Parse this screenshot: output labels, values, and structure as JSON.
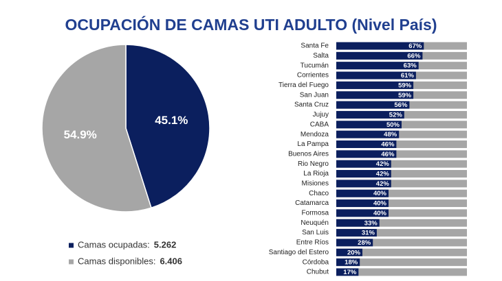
{
  "title": "OCUPACIÓN DE CAMAS UTI ADULTO (Nivel País)",
  "chart_data": [
    {
      "type": "pie",
      "categories": [
        "Camas ocupadas:",
        "Camas disponibles:"
      ],
      "values": [
        45.1,
        54.9
      ],
      "value_labels": [
        "45.1%",
        "54.9%"
      ],
      "colors": [
        "#0b1f5e",
        "#a6a6a6"
      ],
      "counts": [
        {
          "value": 5262,
          "label": "5.262"
        },
        {
          "value": 6406,
          "label": "6.406"
        }
      ]
    },
    {
      "type": "hbar",
      "categories": [
        "Santa Fe",
        "Salta",
        "Tucumán",
        "Corrientes",
        "Tierra del Fuego",
        "San Juan",
        "Santa Cruz",
        "Jujuy",
        "CABA",
        "Mendoza",
        "La Pampa",
        "Buenos Aires",
        "Rio Negro",
        "La Rioja",
        "Misiones",
        "Chaco",
        "Catamarca",
        "Formosa",
        "Neuquén",
        "San Luis",
        "Entre Ríos",
        "Santiago del Estero",
        "Córdoba",
        "Chubut"
      ],
      "values": [
        67,
        66,
        63,
        61,
        59,
        59,
        56,
        52,
        50,
        48,
        46,
        46,
        42,
        42,
        42,
        40,
        40,
        40,
        33,
        31,
        28,
        20,
        18,
        17
      ],
      "value_labels": [
        "67%",
        "66%",
        "63%",
        "61%",
        "59%",
        "59%",
        "56%",
        "52%",
        "50%",
        "48%",
        "46%",
        "46%",
        "42%",
        "42%",
        "42%",
        "40%",
        "40%",
        "40%",
        "33%",
        "31%",
        "28%",
        "20%",
        "18%",
        "17%"
      ],
      "color": "#0b1f5e",
      "track_color": "#a6a6a6",
      "xlim": [
        0,
        100
      ]
    }
  ]
}
